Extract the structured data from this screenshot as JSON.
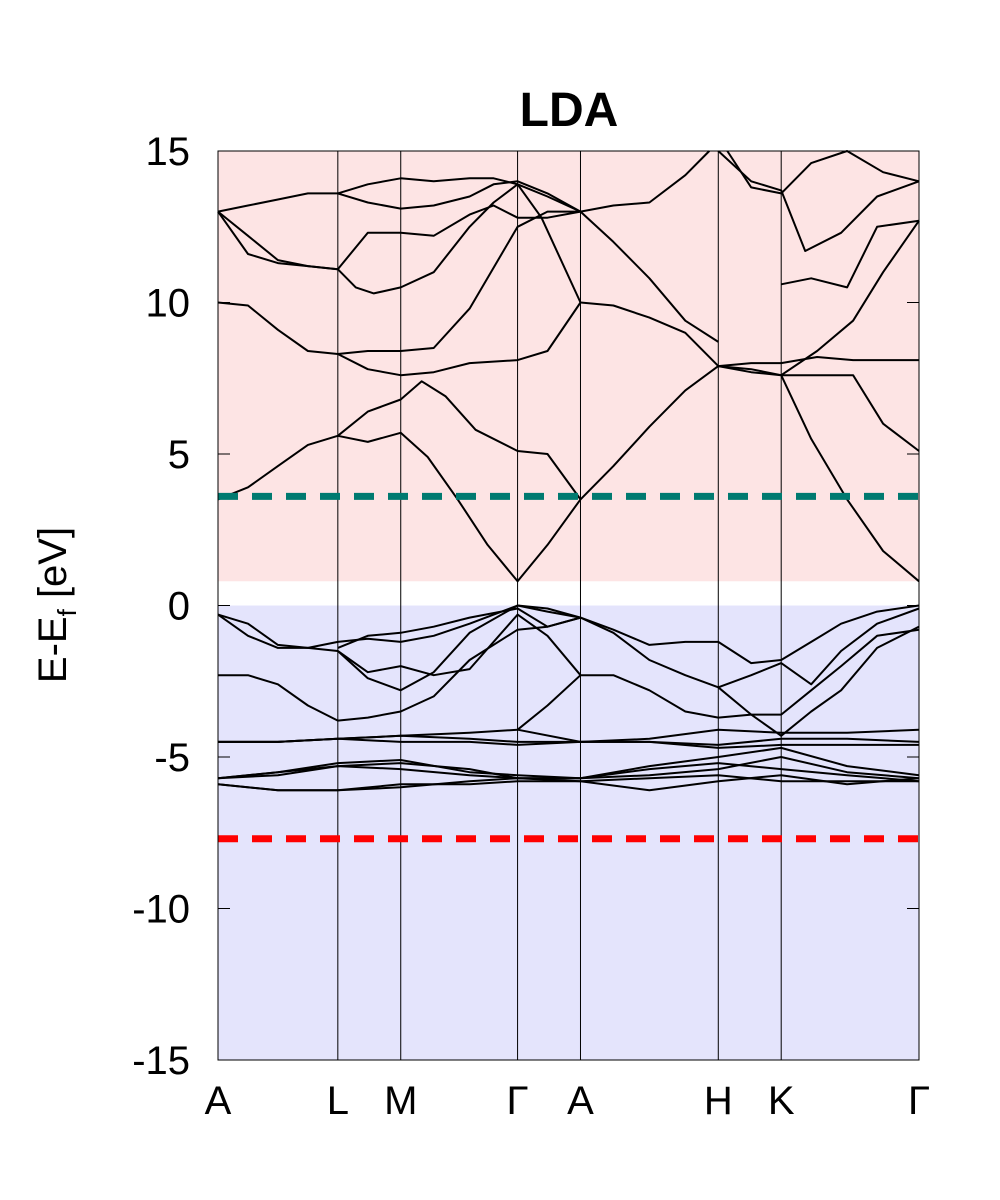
{
  "chart_data": {
    "type": "line",
    "title": "LDA",
    "ylabel": "E-E",
    "ylabel_subscript": "f",
    "ylabel_unit": " [eV]",
    "ylim": [
      -15,
      15
    ],
    "yticks": [
      -15,
      -10,
      -5,
      0,
      5,
      10,
      15
    ],
    "ytick_labels": [
      "-15",
      "-10",
      "-5",
      "0",
      "5",
      "10",
      "15"
    ],
    "kpath": [
      {
        "label": "A",
        "x": 0
      },
      {
        "label": "L",
        "x": 2.0
      },
      {
        "label": "M",
        "x": 3.05
      },
      {
        "label": "Γ",
        "x": 5.0
      },
      {
        "label": "A",
        "x": 6.05
      },
      {
        "label": "H",
        "x": 8.35
      },
      {
        "label": "K",
        "x": 9.4
      },
      {
        "label": "Γ",
        "x": 11.7
      }
    ],
    "regions": [
      {
        "name": "conduction",
        "y": [
          0.8,
          15
        ],
        "color": "#fde4e4"
      },
      {
        "name": "valence",
        "y": [
          -15,
          0
        ],
        "color": "#e4e4fc"
      }
    ],
    "reference_lines": [
      {
        "y": 3.6,
        "color": "#007a70"
      },
      {
        "y": -7.7,
        "color": "#ff0000"
      }
    ],
    "bands": [
      {
        "x": [
          0,
          0.5,
          1.0,
          1.5,
          2.0,
          2.5,
          3.05,
          3.5,
          4.0,
          4.5,
          5.0,
          5.5,
          6.05
        ],
        "y": [
          3.5,
          3.9,
          4.6,
          5.3,
          5.6,
          5.4,
          5.7,
          4.9,
          3.5,
          2.0,
          0.8,
          2.0,
          3.5
        ]
      },
      {
        "x": [
          6.05,
          6.6,
          7.2,
          7.8,
          8.35
        ],
        "y": [
          3.5,
          4.6,
          5.9,
          7.1,
          7.9
        ]
      },
      {
        "x": [
          8.35,
          8.9,
          9.4,
          9.9,
          10.5,
          11.1,
          11.7
        ],
        "y": [
          7.9,
          7.7,
          7.6,
          5.5,
          3.5,
          1.8,
          0.8
        ]
      },
      {
        "x": [
          2.0,
          2.5,
          3.05,
          3.4,
          3.8,
          4.3,
          5.0,
          5.5,
          6.05
        ],
        "y": [
          5.6,
          6.4,
          6.8,
          7.4,
          6.9,
          5.8,
          5.1,
          5.0,
          3.5
        ]
      },
      {
        "x": [
          0,
          0.5,
          1.0,
          1.5,
          2.0,
          2.5,
          3.05,
          3.6,
          4.2,
          5.0,
          5.5,
          6.05
        ],
        "y": [
          10.0,
          9.9,
          9.1,
          8.4,
          8.3,
          7.8,
          7.6,
          7.7,
          8.0,
          8.1,
          8.4,
          10.0
        ]
      },
      {
        "x": [
          2.0,
          2.5,
          3.05,
          3.6,
          4.2,
          5.0,
          5.5,
          6.05
        ],
        "y": [
          8.3,
          8.4,
          8.4,
          8.5,
          9.8,
          12.5,
          13.0,
          13.0
        ]
      },
      {
        "x": [
          6.05,
          6.6,
          7.2,
          7.8,
          8.35
        ],
        "y": [
          10.0,
          9.9,
          9.5,
          9.0,
          7.9
        ]
      },
      {
        "x": [
          8.35,
          8.9,
          9.4,
          10.0,
          10.6,
          11.1,
          11.7
        ],
        "y": [
          7.9,
          8.0,
          8.0,
          8.2,
          8.1,
          8.1,
          8.1
        ]
      },
      {
        "x": [
          8.35,
          8.9,
          9.4,
          10.0,
          10.6,
          11.1,
          11.7
        ],
        "y": [
          7.9,
          7.8,
          7.6,
          7.6,
          7.6,
          6.0,
          5.1
        ]
      },
      {
        "x": [
          9.4,
          10.0,
          10.6,
          11.1,
          11.7
        ],
        "y": [
          7.6,
          8.4,
          9.4,
          11.0,
          12.7
        ]
      },
      {
        "x": [
          0,
          0.5,
          1.0,
          1.5,
          2.0,
          2.3,
          2.6,
          3.05,
          3.6,
          4.2,
          4.6,
          5.0,
          5.4,
          6.05
        ],
        "y": [
          13.0,
          11.6,
          11.3,
          11.2,
          11.1,
          10.5,
          10.3,
          10.5,
          11.0,
          12.5,
          13.3,
          13.9,
          12.8,
          10.0
        ]
      },
      {
        "x": [
          0,
          0.5,
          1.0,
          1.5,
          2.0,
          2.5,
          3.05,
          3.6,
          4.2,
          4.6,
          5.0,
          5.5,
          6.05
        ],
        "y": [
          13.0,
          13.2,
          13.4,
          13.6,
          13.6,
          13.9,
          14.1,
          14.0,
          14.1,
          14.1,
          13.9,
          13.5,
          13.0
        ]
      },
      {
        "x": [
          0,
          0.5,
          1.0,
          1.5,
          2.0,
          2.5,
          3.05,
          3.6,
          4.2,
          4.6,
          5.0,
          5.5,
          6.05
        ],
        "y": [
          13.0,
          12.2,
          11.4,
          11.2,
          11.1,
          12.3,
          12.3,
          12.2,
          12.9,
          13.2,
          12.8,
          12.8,
          13.0
        ]
      },
      {
        "x": [
          2.0,
          2.5,
          3.05,
          3.6,
          4.2,
          4.6,
          5.0,
          5.5,
          6.05
        ],
        "y": [
          13.6,
          13.3,
          13.1,
          13.2,
          13.5,
          13.9,
          14.0,
          13.6,
          13.0
        ]
      },
      {
        "x": [
          6.05,
          6.6,
          7.2,
          7.8,
          8.35
        ],
        "y": [
          13.0,
          12.0,
          10.8,
          9.4,
          8.7
        ]
      },
      {
        "x": [
          6.05,
          6.6,
          7.2,
          7.8,
          8.2
        ],
        "y": [
          13.0,
          13.2,
          13.3,
          14.2,
          15.0
        ]
      },
      {
        "x": [
          8.5,
          8.9,
          9.4,
          9.9,
          10.5,
          11.1,
          11.7
        ],
        "y": [
          15.0,
          13.8,
          13.6,
          14.6,
          15.0,
          14.3,
          14.0
        ]
      },
      {
        "x": [
          8.35,
          8.9,
          9.4,
          9.8,
          10.4,
          11.0,
          11.7
        ],
        "y": [
          15.0,
          14.0,
          13.7,
          11.7,
          12.3,
          13.5,
          14.0
        ]
      },
      {
        "x": [
          9.4,
          9.9,
          10.5,
          11.0,
          11.7
        ],
        "y": [
          10.6,
          10.8,
          10.5,
          12.5,
          12.7
        ]
      },
      {
        "x": [
          0,
          0.5,
          1.0,
          1.5,
          2.0,
          2.5,
          3.05,
          3.6,
          4.2,
          5.0,
          5.5,
          6.05
        ],
        "y": [
          -0.3,
          -0.6,
          -1.3,
          -1.4,
          -1.5,
          -2.4,
          -2.8,
          -2.2,
          -0.9,
          0.0,
          -0.1,
          -0.4
        ]
      },
      {
        "x": [
          0,
          0.5,
          1.0,
          1.5,
          2.0,
          2.5,
          3.05,
          3.6,
          4.2,
          5.0,
          5.5,
          6.05
        ],
        "y": [
          -0.3,
          -1.0,
          -1.4,
          -1.4,
          -1.2,
          -1.1,
          -1.2,
          -1.0,
          -0.6,
          0.0,
          -0.2,
          -0.4
        ]
      },
      {
        "x": [
          2.0,
          2.5,
          3.05,
          3.6,
          4.2,
          5.0,
          5.5,
          6.05
        ],
        "y": [
          -1.4,
          -1.0,
          -0.9,
          -0.7,
          -0.4,
          -0.1,
          -0.7,
          -0.4
        ]
      },
      {
        "x": [
          0,
          0.5,
          1.0,
          1.5,
          2.0,
          2.5,
          3.05,
          3.6,
          4.2,
          5.0,
          5.5,
          6.05
        ],
        "y": [
          -2.3,
          -2.3,
          -2.6,
          -3.3,
          -3.8,
          -3.7,
          -3.5,
          -3.0,
          -1.8,
          -0.8,
          -0.7,
          -0.4
        ]
      },
      {
        "x": [
          2.0,
          2.5,
          3.05,
          3.6,
          4.2,
          5.0,
          5.5,
          6.05
        ],
        "y": [
          -1.5,
          -2.2,
          -2.0,
          -2.3,
          -2.1,
          -0.3,
          -1.0,
          -2.3
        ]
      },
      {
        "x": [
          5.0,
          5.5,
          6.05
        ],
        "y": [
          -4.1,
          -3.3,
          -2.3
        ]
      },
      {
        "x": [
          6.05,
          6.6,
          7.2,
          7.8,
          8.35,
          8.9,
          9.4,
          9.9,
          10.4,
          11.0,
          11.7
        ],
        "y": [
          -0.4,
          -0.8,
          -1.3,
          -1.2,
          -1.2,
          -1.9,
          -1.8,
          -1.2,
          -0.6,
          -0.2,
          0.0
        ]
      },
      {
        "x": [
          6.05,
          6.6,
          7.2,
          7.8,
          8.35,
          8.9,
          9.4,
          9.9,
          10.4,
          11.0,
          11.7
        ],
        "y": [
          -0.4,
          -0.9,
          -1.8,
          -2.3,
          -2.7,
          -2.3,
          -1.9,
          -2.6,
          -1.5,
          -0.6,
          -0.1
        ]
      },
      {
        "x": [
          6.05,
          6.6,
          7.2,
          7.8,
          8.35,
          8.9,
          9.4,
          9.9,
          10.4,
          11.0,
          11.7
        ],
        "y": [
          -2.3,
          -2.3,
          -2.8,
          -3.5,
          -3.7,
          -3.6,
          -3.6,
          -2.8,
          -2.0,
          -1.0,
          -0.8
        ]
      },
      {
        "x": [
          8.35,
          8.9,
          9.4,
          9.9,
          10.4,
          11.0,
          11.7
        ],
        "y": [
          -2.7,
          -3.6,
          -4.3,
          -3.5,
          -2.8,
          -1.4,
          -0.7
        ]
      },
      {
        "x": [
          0,
          1.0,
          2.0,
          3.05,
          4.2,
          5.0,
          6.05,
          7.2,
          8.35,
          9.4,
          10.5,
          11.7
        ],
        "y": [
          -4.5,
          -4.5,
          -4.4,
          -4.3,
          -4.2,
          -4.1,
          -4.5,
          -4.5,
          -4.6,
          -4.4,
          -4.4,
          -4.5
        ]
      },
      {
        "x": [
          0,
          1.0,
          2.0,
          3.05,
          4.2,
          5.0,
          6.05,
          7.2,
          8.35,
          9.4,
          10.5,
          11.7
        ],
        "y": [
          -4.5,
          -4.5,
          -4.4,
          -4.5,
          -4.5,
          -4.6,
          -4.5,
          -4.4,
          -4.1,
          -4.2,
          -4.2,
          -4.1
        ]
      },
      {
        "x": [
          0,
          1.0,
          2.0,
          3.05,
          4.2,
          5.0,
          6.05,
          7.2,
          8.35,
          9.4,
          10.5,
          11.7
        ],
        "y": [
          -4.5,
          -4.5,
          -4.4,
          -4.3,
          -4.4,
          -4.5,
          -4.5,
          -4.5,
          -4.7,
          -4.6,
          -4.6,
          -4.6
        ]
      },
      {
        "x": [
          0,
          1.0,
          2.0,
          3.05,
          4.2,
          5.0,
          6.05,
          7.2,
          8.35,
          9.4,
          10.5,
          11.7
        ],
        "y": [
          -5.7,
          -5.5,
          -5.2,
          -5.1,
          -5.5,
          -5.6,
          -5.7,
          -5.3,
          -5.0,
          -4.7,
          -5.3,
          -5.6
        ]
      },
      {
        "x": [
          0,
          1.0,
          2.0,
          3.05,
          4.2,
          5.0,
          6.05,
          7.2,
          8.35,
          9.4,
          10.5,
          11.7
        ],
        "y": [
          -5.7,
          -5.6,
          -5.3,
          -5.2,
          -5.4,
          -5.7,
          -5.7,
          -5.6,
          -5.4,
          -5.0,
          -5.5,
          -5.7
        ]
      },
      {
        "x": [
          0,
          1.0,
          2.0,
          3.05,
          4.2,
          5.0,
          6.05,
          7.2,
          8.35,
          9.4,
          10.5,
          11.7
        ],
        "y": [
          -5.7,
          -5.5,
          -5.3,
          -5.4,
          -5.6,
          -5.7,
          -5.7,
          -5.4,
          -5.2,
          -5.4,
          -5.6,
          -5.8
        ]
      },
      {
        "x": [
          0,
          1.0,
          2.0,
          3.05,
          4.2,
          5.0,
          6.05,
          7.2,
          8.35,
          9.4,
          10.5,
          11.7
        ],
        "y": [
          -5.9,
          -6.1,
          -6.1,
          -5.9,
          -5.9,
          -5.8,
          -5.8,
          -6.1,
          -5.8,
          -5.6,
          -5.9,
          -5.7
        ]
      },
      {
        "x": [
          0,
          1.0,
          2.0,
          3.05,
          4.2,
          5.0,
          6.05,
          7.2,
          8.35,
          9.4,
          10.5,
          11.7
        ],
        "y": [
          -5.9,
          -6.1,
          -6.1,
          -6.0,
          -5.8,
          -5.7,
          -5.8,
          -5.7,
          -5.6,
          -5.8,
          -5.8,
          -5.8
        ]
      }
    ]
  }
}
